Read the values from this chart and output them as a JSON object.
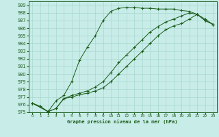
{
  "title": "Graphe pression niveau de la mer (hPa)",
  "background_color": "#c8ece8",
  "grid_color": "#a8d8d0",
  "line_color": "#1a5c1a",
  "xlim": [
    -0.5,
    23.5
  ],
  "ylim": [
    975,
    989.5
  ],
  "xticks": [
    0,
    1,
    2,
    3,
    4,
    5,
    6,
    7,
    8,
    9,
    10,
    11,
    12,
    13,
    14,
    15,
    16,
    17,
    18,
    19,
    20,
    21,
    22,
    23
  ],
  "yticks": [
    975,
    976,
    977,
    978,
    979,
    980,
    981,
    982,
    983,
    984,
    985,
    986,
    987,
    988,
    989
  ],
  "series": [
    {
      "x": [
        0,
        1,
        2,
        3,
        4,
        5,
        6,
        7,
        8,
        9,
        10,
        11,
        12,
        13,
        14,
        15,
        16,
        17,
        18,
        19,
        20,
        21,
        22,
        23
      ],
      "y": [
        976.2,
        975.8,
        975.1,
        976.5,
        977.2,
        979.0,
        981.8,
        983.5,
        985.0,
        987.0,
        988.2,
        988.6,
        988.7,
        988.7,
        988.6,
        988.6,
        988.5,
        988.5,
        988.5,
        988.3,
        988.2,
        987.8,
        987.0,
        986.5
      ]
    },
    {
      "x": [
        0,
        2,
        3,
        4,
        5,
        6,
        7,
        8,
        9,
        10,
        11,
        12,
        13,
        14,
        15,
        16,
        17,
        18,
        19,
        20,
        21,
        22,
        23
      ],
      "y": [
        976.2,
        975.1,
        975.5,
        976.8,
        977.2,
        977.5,
        977.8,
        978.3,
        979.0,
        980.2,
        981.5,
        982.5,
        983.5,
        984.5,
        985.5,
        986.2,
        986.8,
        987.2,
        987.6,
        988.0,
        987.8,
        987.2,
        986.5
      ]
    },
    {
      "x": [
        0,
        2,
        3,
        4,
        5,
        6,
        7,
        8,
        9,
        10,
        11,
        12,
        13,
        14,
        15,
        16,
        17,
        18,
        19,
        20,
        21,
        22,
        23
      ],
      "y": [
        976.2,
        975.1,
        975.5,
        976.8,
        977.0,
        977.3,
        977.5,
        977.8,
        978.2,
        979.0,
        980.0,
        981.0,
        982.0,
        983.0,
        984.0,
        985.0,
        985.8,
        986.3,
        986.6,
        987.2,
        987.8,
        987.0,
        986.5
      ]
    }
  ]
}
